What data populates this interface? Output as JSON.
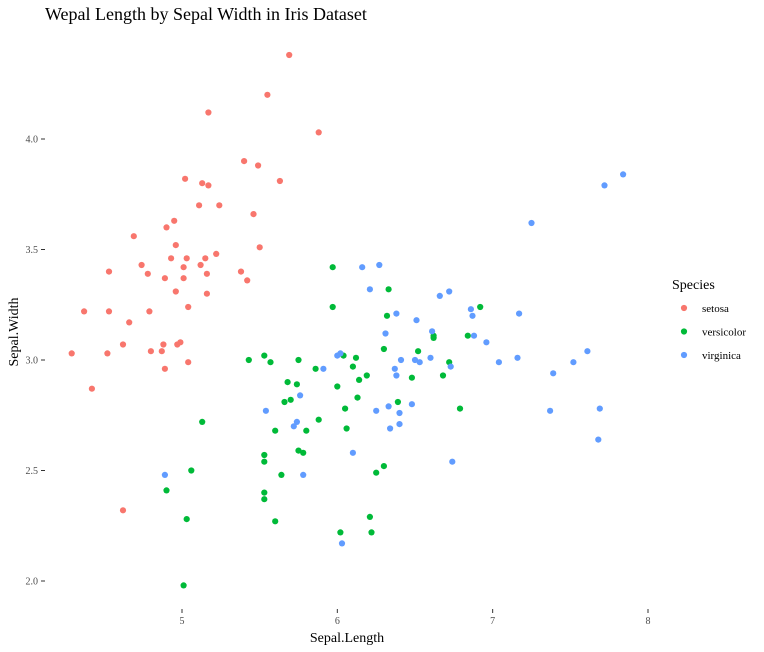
{
  "chart_data": {
    "type": "scatter",
    "title": "Wepal Length by Sepal Width in Iris Dataset",
    "xlabel": "Sepal.Length",
    "ylabel": "Sepal.Width",
    "xlim": [
      4.25,
      7.95
    ],
    "ylim": [
      1.93,
      4.45
    ],
    "x_ticks": [
      5,
      6,
      7,
      8
    ],
    "y_ticks": [
      2.0,
      2.5,
      3.0,
      3.5,
      4.0
    ],
    "y_tick_labels": [
      "2.0",
      "2.5",
      "3.0",
      "3.5",
      "4.0"
    ],
    "grid": false,
    "legend": {
      "title": "Species",
      "position": "right"
    },
    "series": [
      {
        "name": "setosa",
        "color": "#F8766D",
        "points": [
          [
            4.29,
            3.03
          ],
          [
            4.37,
            3.22
          ],
          [
            4.42,
            2.87
          ],
          [
            4.52,
            3.03
          ],
          [
            4.53,
            3.4
          ],
          [
            4.53,
            3.22
          ],
          [
            4.62,
            3.07
          ],
          [
            4.62,
            2.32
          ],
          [
            4.66,
            3.17
          ],
          [
            4.69,
            3.56
          ],
          [
            4.74,
            3.43
          ],
          [
            4.78,
            3.39
          ],
          [
            4.79,
            3.22
          ],
          [
            4.8,
            3.04
          ],
          [
            4.87,
            3.04
          ],
          [
            4.88,
            3.07
          ],
          [
            4.89,
            3.37
          ],
          [
            4.89,
            2.96
          ],
          [
            4.9,
            3.6
          ],
          [
            4.93,
            3.46
          ],
          [
            4.95,
            3.63
          ],
          [
            4.96,
            3.52
          ],
          [
            4.96,
            3.31
          ],
          [
            4.97,
            3.07
          ],
          [
            4.99,
            3.08
          ],
          [
            5.01,
            3.37
          ],
          [
            5.01,
            3.42
          ],
          [
            5.02,
            3.82
          ],
          [
            5.03,
            3.46
          ],
          [
            5.04,
            3.24
          ],
          [
            5.04,
            2.99
          ],
          [
            5.11,
            3.7
          ],
          [
            5.12,
            3.43
          ],
          [
            5.13,
            3.8
          ],
          [
            5.15,
            3.46
          ],
          [
            5.16,
            3.39
          ],
          [
            5.16,
            3.3
          ],
          [
            5.17,
            3.79
          ],
          [
            5.17,
            4.12
          ],
          [
            5.22,
            3.48
          ],
          [
            5.24,
            3.7
          ],
          [
            5.38,
            3.4
          ],
          [
            5.4,
            3.9
          ],
          [
            5.42,
            3.36
          ],
          [
            5.46,
            3.66
          ],
          [
            5.49,
            3.88
          ],
          [
            5.5,
            3.51
          ],
          [
            5.55,
            4.2
          ],
          [
            5.63,
            3.81
          ],
          [
            5.69,
            4.38
          ],
          [
            5.88,
            4.03
          ]
        ]
      },
      {
        "name": "versicolor",
        "color": "#00BA38",
        "points": [
          [
            4.9,
            2.41
          ],
          [
            5.01,
            1.98
          ],
          [
            5.03,
            2.28
          ],
          [
            5.06,
            2.5
          ],
          [
            5.13,
            2.72
          ],
          [
            5.43,
            3.0
          ],
          [
            5.53,
            2.4
          ],
          [
            5.53,
            2.37
          ],
          [
            5.53,
            2.54
          ],
          [
            5.53,
            2.57
          ],
          [
            5.53,
            3.02
          ],
          [
            5.57,
            2.99
          ],
          [
            5.6,
            2.68
          ],
          [
            5.6,
            2.27
          ],
          [
            5.64,
            2.48
          ],
          [
            5.66,
            2.81
          ],
          [
            5.68,
            2.9
          ],
          [
            5.7,
            2.82
          ],
          [
            5.74,
            2.89
          ],
          [
            5.75,
            3.0
          ],
          [
            5.75,
            2.59
          ],
          [
            5.78,
            2.58
          ],
          [
            5.8,
            2.68
          ],
          [
            5.86,
            2.96
          ],
          [
            5.88,
            2.73
          ],
          [
            5.97,
            3.42
          ],
          [
            5.97,
            3.24
          ],
          [
            6.0,
            2.88
          ],
          [
            6.02,
            2.22
          ],
          [
            6.04,
            3.02
          ],
          [
            6.05,
            2.78
          ],
          [
            6.06,
            2.69
          ],
          [
            6.1,
            2.97
          ],
          [
            6.12,
            3.01
          ],
          [
            6.13,
            2.83
          ],
          [
            6.14,
            2.91
          ],
          [
            6.19,
            2.93
          ],
          [
            6.21,
            2.29
          ],
          [
            6.22,
            2.22
          ],
          [
            6.25,
            2.49
          ],
          [
            6.3,
            3.05
          ],
          [
            6.3,
            2.52
          ],
          [
            6.32,
            3.2
          ],
          [
            6.33,
            3.32
          ],
          [
            6.39,
            2.81
          ],
          [
            6.48,
            2.92
          ],
          [
            6.52,
            3.04
          ],
          [
            6.62,
            3.1
          ],
          [
            6.62,
            3.11
          ],
          [
            6.68,
            2.93
          ],
          [
            6.72,
            2.99
          ],
          [
            6.79,
            2.78
          ],
          [
            6.84,
            3.11
          ],
          [
            6.92,
            3.24
          ]
        ]
      },
      {
        "name": "virginica",
        "color": "#619CFF",
        "points": [
          [
            4.89,
            2.48
          ],
          [
            5.54,
            2.77
          ],
          [
            5.72,
            2.7
          ],
          [
            5.74,
            2.72
          ],
          [
            5.76,
            2.84
          ],
          [
            5.78,
            2.48
          ],
          [
            5.91,
            2.96
          ],
          [
            6.0,
            3.02
          ],
          [
            6.02,
            3.03
          ],
          [
            6.03,
            2.17
          ],
          [
            6.1,
            2.58
          ],
          [
            6.16,
            3.42
          ],
          [
            6.21,
            3.32
          ],
          [
            6.25,
            2.77
          ],
          [
            6.27,
            3.43
          ],
          [
            6.31,
            3.12
          ],
          [
            6.33,
            2.79
          ],
          [
            6.34,
            2.69
          ],
          [
            6.37,
            2.96
          ],
          [
            6.38,
            3.21
          ],
          [
            6.38,
            2.93
          ],
          [
            6.4,
            2.76
          ],
          [
            6.4,
            2.71
          ],
          [
            6.41,
            3.0
          ],
          [
            6.48,
            2.8
          ],
          [
            6.5,
            3.0
          ],
          [
            6.51,
            3.18
          ],
          [
            6.53,
            2.99
          ],
          [
            6.6,
            3.01
          ],
          [
            6.61,
            3.13
          ],
          [
            6.66,
            3.29
          ],
          [
            6.72,
            3.31
          ],
          [
            6.73,
            2.97
          ],
          [
            6.74,
            2.54
          ],
          [
            6.86,
            3.23
          ],
          [
            6.87,
            3.2
          ],
          [
            6.88,
            3.11
          ],
          [
            6.96,
            3.08
          ],
          [
            7.04,
            2.99
          ],
          [
            7.16,
            3.01
          ],
          [
            7.17,
            3.21
          ],
          [
            7.25,
            3.62
          ],
          [
            7.37,
            2.77
          ],
          [
            7.39,
            2.94
          ],
          [
            7.52,
            2.99
          ],
          [
            7.61,
            3.04
          ],
          [
            7.68,
            2.64
          ],
          [
            7.69,
            2.78
          ],
          [
            7.72,
            3.79
          ],
          [
            7.84,
            3.84
          ]
        ]
      }
    ]
  }
}
